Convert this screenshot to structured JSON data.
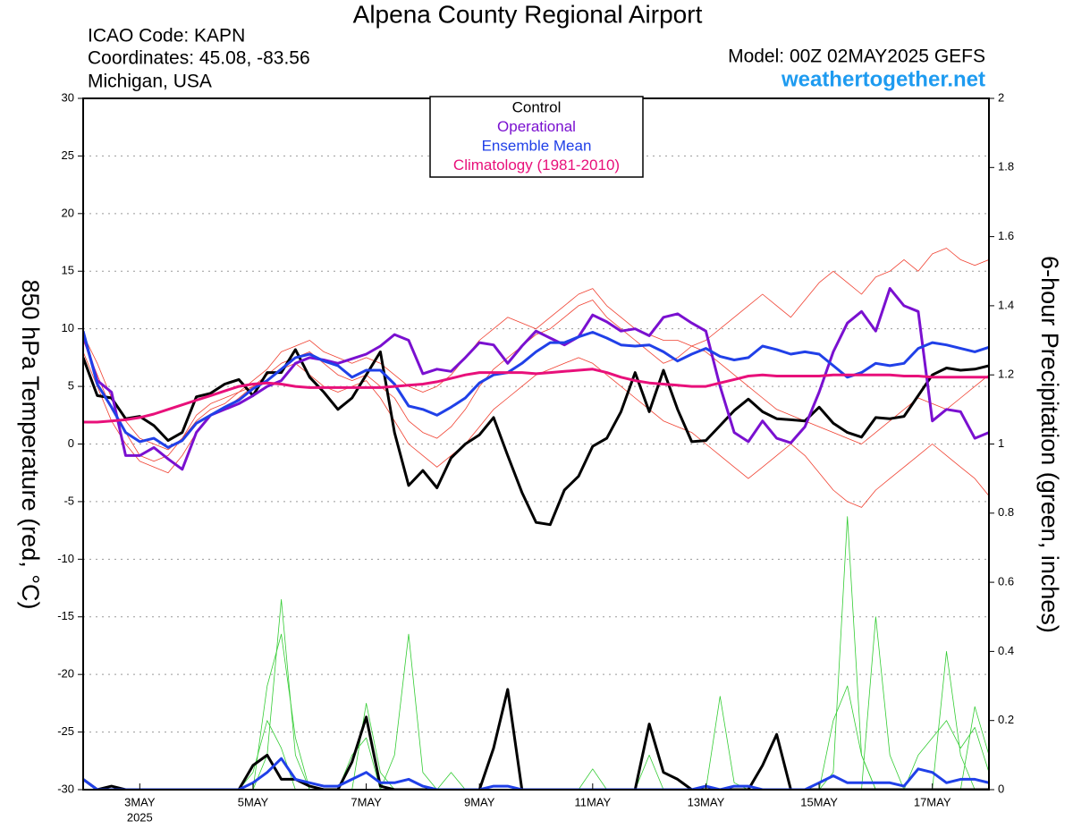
{
  "chart_data": {
    "type": "line",
    "title": "Alpena County Regional Airport",
    "info_lines": [
      "ICAO Code: KAPN",
      "Coordinates: 45.08, -83.56",
      "Michigan, USA"
    ],
    "model": "Model: 00Z 02MAY2025 GEFS",
    "source": "weathertogether.net",
    "y_label": "850 hPa Temperature (red, °C)",
    "y2_label": "6-hour Precipitation (green, inches)",
    "x_year_label": "2025",
    "grid": true,
    "legend": "top",
    "x": [
      0,
      6,
      12,
      18,
      24,
      30,
      36,
      42,
      48,
      54,
      60,
      66,
      72,
      78,
      84,
      90,
      96,
      102,
      108,
      114,
      120,
      126,
      132,
      138,
      144,
      150,
      156,
      162,
      168,
      174,
      180,
      186,
      192,
      198,
      204,
      210,
      216,
      222,
      228,
      234,
      240,
      246,
      252,
      258,
      264,
      270,
      276,
      282,
      288,
      294,
      300,
      306,
      312,
      318,
      324,
      330,
      336,
      342,
      348,
      354,
      360,
      366,
      372,
      378,
      384
    ],
    "xlim": [
      0,
      384
    ],
    "xticks": [
      {
        "value": 24,
        "label": "3MAY"
      },
      {
        "value": 72,
        "label": "5MAY"
      },
      {
        "value": 120,
        "label": "7MAY"
      },
      {
        "value": 168,
        "label": "9MAY"
      },
      {
        "value": 216,
        "label": "11MAY"
      },
      {
        "value": 264,
        "label": "13MAY"
      },
      {
        "value": 312,
        "label": "15MAY"
      },
      {
        "value": 360,
        "label": "17MAY"
      }
    ],
    "ylim": [
      -30,
      30
    ],
    "yticks": [
      -30,
      -25,
      -20,
      -15,
      -10,
      -5,
      0,
      5,
      10,
      15,
      20,
      25,
      30
    ],
    "y2lim": [
      0,
      2
    ],
    "y2ticks": [
      0,
      0.2,
      0.4,
      0.6,
      0.8,
      1,
      1.2,
      1.4,
      1.6,
      1.8,
      2
    ],
    "members": [
      {
        "color": "#f04030",
        "values": [
          9,
          6,
          3,
          1,
          -1,
          -1.5,
          -1,
          0.5,
          2,
          3,
          3.5,
          4.5,
          5,
          6,
          7,
          7.5,
          8,
          7,
          6,
          5.5,
          6,
          5,
          4,
          2,
          1,
          0.5,
          1.5,
          3,
          5,
          6.5,
          7.5,
          8.5,
          9.5,
          10,
          11,
          12,
          12.5,
          11,
          10,
          9,
          8,
          7,
          7.5,
          8.5,
          9,
          10,
          11,
          12,
          13,
          12,
          11,
          12.5,
          14,
          15,
          14,
          13,
          14.5,
          15,
          16,
          15,
          16.5,
          17,
          16,
          15.5,
          16
        ]
      },
      {
        "color": "#f04030",
        "values": [
          8,
          5,
          2,
          0,
          -1.5,
          -2,
          -2.5,
          -1,
          1,
          2.5,
          3,
          4,
          5,
          5.5,
          6.5,
          7,
          6,
          5,
          4.5,
          5,
          5.5,
          4,
          2,
          0,
          -1,
          -2,
          -1,
          0,
          1.5,
          3,
          4,
          5,
          6,
          6.5,
          7,
          7.5,
          7,
          6,
          5,
          4,
          3,
          2,
          1.5,
          1,
          0,
          -1,
          -2,
          -3,
          -2,
          -1,
          0,
          -1,
          -2.5,
          -4,
          -5,
          -5.5,
          -4,
          -3,
          -2,
          -1,
          0,
          -1,
          -2,
          -3,
          -4.5
        ]
      },
      {
        "color": "#f04030",
        "values": [
          9.5,
          7,
          4,
          2,
          0.5,
          0,
          -0.5,
          0.5,
          2.5,
          3.5,
          4,
          4.5,
          5.5,
          6.5,
          8,
          8.5,
          9,
          8,
          7.5,
          7,
          7.5,
          7,
          6,
          5,
          4.5,
          5,
          6,
          7.5,
          9,
          10,
          11,
          10.5,
          10,
          11,
          12,
          13,
          13.5,
          12,
          11,
          10,
          9.5,
          9,
          9,
          8.5,
          8,
          7,
          6,
          5,
          4,
          3,
          2.5,
          2,
          1.5,
          1,
          0.5,
          0,
          1,
          2,
          3,
          4,
          3.5,
          3,
          4,
          5,
          6
        ]
      }
    ],
    "precip_members": [
      {
        "color": "#33cc33",
        "axis": "y2",
        "values": [
          0,
          0,
          0,
          0,
          0,
          0,
          0,
          0,
          0,
          0,
          0,
          0,
          0,
          0.1,
          0.55,
          0.1,
          0,
          0,
          0,
          0,
          0,
          0,
          0.1,
          0.45,
          0.05,
          0,
          0,
          0,
          0,
          0,
          0,
          0,
          0,
          0,
          0,
          0,
          0,
          0,
          0,
          0,
          0,
          0,
          0,
          0,
          0,
          0,
          0,
          0,
          0,
          0,
          0,
          0,
          0,
          0.05,
          0.79,
          0.1,
          0,
          0,
          0,
          0,
          0,
          0.4,
          0.1,
          0,
          0
        ]
      },
      {
        "color": "#33cc33",
        "axis": "y2",
        "values": [
          0,
          0,
          0,
          0,
          0,
          0,
          0,
          0,
          0,
          0,
          0,
          0,
          0,
          0.3,
          0.45,
          0.15,
          0,
          0,
          0,
          0,
          0.25,
          0.05,
          0,
          0,
          0,
          0,
          0,
          0,
          0,
          0,
          0,
          0,
          0,
          0,
          0,
          0,
          0.06,
          0,
          0,
          0,
          0,
          0,
          0,
          0,
          0,
          0.27,
          0.02,
          0,
          0,
          0,
          0,
          0,
          0,
          0,
          0,
          0,
          0.5,
          0.1,
          0,
          0,
          0,
          0,
          0,
          0.24,
          0.1
        ]
      },
      {
        "color": "#33cc33",
        "axis": "y2",
        "values": [
          0,
          0,
          0,
          0,
          0,
          0,
          0,
          0,
          0,
          0,
          0,
          0,
          0.05,
          0.2,
          0.12,
          0,
          0,
          0,
          0,
          0.1,
          0.15,
          0,
          0,
          0,
          0,
          0,
          0.05,
          0,
          0,
          0,
          0,
          0,
          0,
          0,
          0,
          0,
          0,
          0,
          0,
          0,
          0.1,
          0,
          0,
          0,
          0,
          0,
          0,
          0,
          0,
          0,
          0,
          0,
          0,
          0.2,
          0.3,
          0.1,
          0,
          0,
          0,
          0.1,
          0.15,
          0.2,
          0.12,
          0.18,
          0.05
        ]
      }
    ],
    "precip_series": [
      {
        "color": "#000000",
        "axis": "y2",
        "values": [
          0.03,
          0,
          0.01,
          0,
          0,
          0,
          0,
          0,
          0,
          0,
          0,
          0,
          0.07,
          0.1,
          0.03,
          0.03,
          0.01,
          0,
          0,
          0.08,
          0.21,
          0.01,
          0,
          0,
          0,
          0,
          0,
          0,
          0,
          0.12,
          0.29,
          0,
          0,
          0,
          0,
          0,
          0,
          0,
          0,
          0,
          0.19,
          0.05,
          0.03,
          0,
          0,
          0,
          0,
          0,
          0.07,
          0.16,
          0,
          0,
          0,
          0,
          0,
          0,
          0,
          0,
          0,
          0,
          0,
          0,
          0,
          0,
          0
        ]
      },
      {
        "color": "#2040e8",
        "axis": "y2",
        "values": [
          0.03,
          0,
          0,
          0,
          0,
          0,
          0,
          0,
          0,
          0,
          0,
          0,
          0.02,
          0.05,
          0.09,
          0.03,
          0.02,
          0.01,
          0.01,
          0.03,
          0.05,
          0.02,
          0.02,
          0.03,
          0.01,
          0,
          0,
          0,
          0,
          0.01,
          0.01,
          0,
          0,
          0,
          0,
          0,
          0,
          0,
          0,
          0,
          0,
          0,
          0,
          0,
          0.01,
          0,
          0.01,
          0.01,
          0,
          0,
          0,
          0,
          0.02,
          0.04,
          0.02,
          0.02,
          0.02,
          0.02,
          0.01,
          0.06,
          0.05,
          0.02,
          0.03,
          0.03,
          0.02
        ]
      }
    ],
    "series": [
      {
        "name": "Control",
        "color": "#000000",
        "values": [
          7.5,
          4.2,
          4.0,
          2.2,
          2.4,
          1.6,
          0.3,
          1.0,
          4.1,
          4.4,
          5.2,
          5.6,
          4.2,
          6.2,
          6.2,
          8.2,
          5.8,
          4.5,
          3.0,
          4.0,
          6.0,
          8.0,
          1.0,
          -3.6,
          -2.3,
          -3.8,
          -1.2,
          0.0,
          0.8,
          2.3,
          -1.0,
          -4.2,
          -6.8,
          -7.0,
          -4.0,
          -2.8,
          -0.2,
          0.5,
          2.8,
          6.2,
          2.8,
          6.4,
          3.0,
          0.2,
          0.3,
          1.6,
          2.9,
          3.9,
          2.8,
          2.2,
          2.1,
          2.0,
          3.2,
          1.8,
          1.0,
          0.6,
          2.3,
          2.2,
          2.4,
          4.2,
          6.0,
          6.6,
          6.4,
          6.5,
          6.8
        ]
      },
      {
        "name": "Operational",
        "color": "#7a10d0",
        "values": [
          9.5,
          5.5,
          4.5,
          -1.0,
          -1.0,
          -0.3,
          -1.3,
          -2.2,
          1.0,
          2.5,
          3.0,
          3.5,
          4.2,
          5.0,
          5.5,
          7.0,
          7.5,
          7.3,
          7.0,
          7.4,
          7.8,
          8.5,
          9.5,
          9.0,
          6.1,
          6.5,
          6.3,
          7.5,
          8.8,
          8.6,
          7.0,
          8.5,
          9.8,
          9.2,
          8.6,
          9.3,
          11.2,
          10.6,
          9.8,
          10.0,
          9.4,
          11.0,
          11.3,
          10.5,
          9.8,
          5.0,
          1.0,
          0.2,
          2.0,
          0.5,
          0.1,
          1.5,
          4.5,
          8.0,
          10.5,
          11.5,
          9.8,
          13.5,
          12.0,
          11.5,
          2.0,
          3.0,
          2.8,
          0.5,
          1.0
        ]
      },
      {
        "name": "Ensemble Mean",
        "color": "#2040e8",
        "values": [
          9.8,
          5.2,
          3.2,
          1.0,
          0.2,
          0.5,
          -0.3,
          0.3,
          1.8,
          2.5,
          3.2,
          3.8,
          4.8,
          5.5,
          6.5,
          7.5,
          7.8,
          7.2,
          6.8,
          5.8,
          6.4,
          6.4,
          5.2,
          3.3,
          3.0,
          2.5,
          3.2,
          4.0,
          5.3,
          6.0,
          6.2,
          7.0,
          8.0,
          8.8,
          8.8,
          9.3,
          9.7,
          9.2,
          8.6,
          8.5,
          8.6,
          8.0,
          7.2,
          7.8,
          8.3,
          7.6,
          7.3,
          7.5,
          8.5,
          8.2,
          7.8,
          8.0,
          7.8,
          6.8,
          5.8,
          6.2,
          7.0,
          6.8,
          7.0,
          8.3,
          8.8,
          8.6,
          8.3,
          8.0,
          8.4
        ]
      },
      {
        "name": "Climatology (1981-2010)",
        "color": "#e8107a",
        "values": [
          1.9,
          1.9,
          2.0,
          2.1,
          2.3,
          2.6,
          3.0,
          3.4,
          3.8,
          4.2,
          4.6,
          5.0,
          5.2,
          5.3,
          5.2,
          5.0,
          4.9,
          4.9,
          4.9,
          4.9,
          4.9,
          4.9,
          5.0,
          5.1,
          5.2,
          5.4,
          5.7,
          6.0,
          6.2,
          6.2,
          6.2,
          6.2,
          6.1,
          6.2,
          6.3,
          6.4,
          6.5,
          6.2,
          5.8,
          5.5,
          5.3,
          5.2,
          5.1,
          5.0,
          5.0,
          5.3,
          5.6,
          5.9,
          6.0,
          5.9,
          5.9,
          5.9,
          5.9,
          6.0,
          6.0,
          6.0,
          6.0,
          6.0,
          5.9,
          5.9,
          5.8,
          5.8,
          5.8,
          5.8,
          5.8
        ]
      }
    ]
  }
}
